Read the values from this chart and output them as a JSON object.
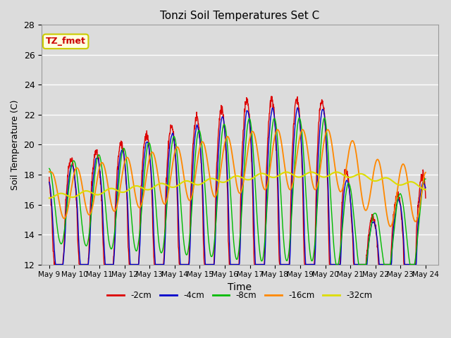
{
  "title": "Tonzi Soil Temperatures Set C",
  "xlabel": "Time",
  "ylabel": "Soil Temperature (C)",
  "ylim": [
    12,
    28
  ],
  "annotation": "TZ_fmet",
  "background_color": "#dcdcdc",
  "series_colors": {
    "-2cm": "#dd0000",
    "-4cm": "#0000cc",
    "-8cm": "#00bb00",
    "-16cm": "#ff8800",
    "-32cm": "#dddd00"
  },
  "xtick_labels": [
    "May 9",
    "May 10",
    "May 11",
    "May 12",
    "May 13",
    "May 14",
    "May 15",
    "May 16",
    "May 17",
    "May 18",
    "May 19",
    "May 20",
    "May 21",
    "May 22",
    "May 23",
    "May 24"
  ]
}
